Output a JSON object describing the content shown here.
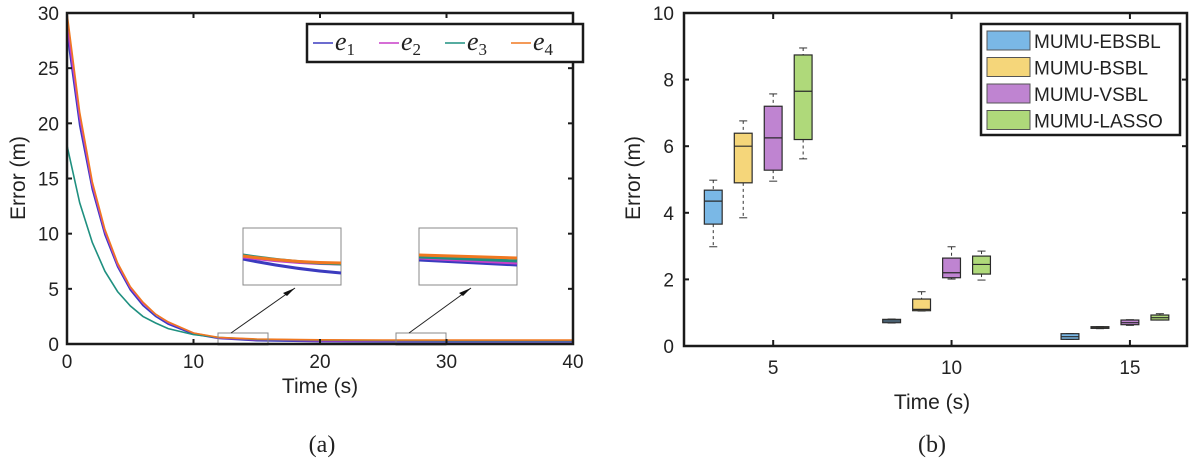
{
  "chart_data": [
    {
      "type": "line",
      "caption": "(a)",
      "xlabel": "Time (s)",
      "ylabel": "Error (m)",
      "xlim": [
        0,
        40
      ],
      "ylim": [
        0,
        30
      ],
      "xticks": [
        0,
        10,
        20,
        30,
        40
      ],
      "yticks": [
        0,
        5,
        10,
        15,
        20,
        25,
        30
      ],
      "grid": false,
      "legend_position": "top-right",
      "x": [
        0,
        1,
        2,
        3,
        4,
        5,
        6,
        7,
        8,
        10,
        12,
        15,
        20,
        25,
        30,
        35,
        40
      ],
      "series": [
        {
          "name": "e1",
          "color": "#3b3bbf",
          "values": [
            28.2,
            19.8,
            14.0,
            9.9,
            7.0,
            4.9,
            3.5,
            2.5,
            1.8,
            0.9,
            0.5,
            0.3,
            0.22,
            0.2,
            0.2,
            0.2,
            0.2
          ]
        },
        {
          "name": "e2",
          "color": "#c83fc8",
          "values": [
            29.0,
            20.5,
            14.4,
            10.2,
            7.2,
            5.1,
            3.7,
            2.7,
            1.95,
            1.0,
            0.55,
            0.38,
            0.3,
            0.28,
            0.27,
            0.27,
            0.27
          ]
        },
        {
          "name": "e3",
          "color": "#1f9080",
          "values": [
            18.0,
            12.8,
            9.2,
            6.6,
            4.75,
            3.45,
            2.5,
            1.9,
            1.4,
            0.85,
            0.6,
            0.42,
            0.35,
            0.32,
            0.3,
            0.3,
            0.3
          ]
        },
        {
          "name": "e4",
          "color": "#f07820",
          "values": [
            30.0,
            21.0,
            14.7,
            10.4,
            7.35,
            5.2,
            3.8,
            2.7,
            2.0,
            1.0,
            0.6,
            0.45,
            0.38,
            0.36,
            0.35,
            0.35,
            0.35
          ]
        }
      ],
      "zoom_insets": [
        {
          "x_range": [
            12,
            16
          ]
        },
        {
          "x_range": [
            26,
            30
          ]
        }
      ]
    },
    {
      "type": "box",
      "caption": "(b)",
      "xlabel": "Time (s)",
      "ylabel": "Error (m)",
      "xlim": [
        2.5,
        16.6
      ],
      "ylim": [
        0,
        10
      ],
      "xticks": [
        5,
        10,
        15
      ],
      "yticks": [
        0,
        2,
        4,
        6,
        8,
        10
      ],
      "grid": false,
      "legend_position": "top-right",
      "categories": [
        5,
        10,
        15
      ],
      "series": [
        {
          "name": "MUMU-EBSBL",
          "color": "#7ab8e6",
          "boxes": [
            {
              "min": 2.98,
              "q1": 3.66,
              "median": 4.35,
              "q3": 4.68,
              "max": 4.98
            },
            {
              "min": 0.69,
              "q1": 0.7,
              "median": 0.75,
              "q3": 0.8,
              "max": 0.81
            },
            {
              "min": 0.2,
              "q1": 0.2,
              "median": 0.28,
              "q3": 0.37,
              "max": 0.37
            }
          ]
        },
        {
          "name": "MUMU-BSBL",
          "color": "#f5d67a",
          "boxes": [
            {
              "min": 3.85,
              "q1": 4.9,
              "median": 6.0,
              "q3": 6.39,
              "max": 6.76
            },
            {
              "min": 1.05,
              "q1": 1.06,
              "median": 1.1,
              "q3": 1.41,
              "max": 1.63
            },
            {
              "min": 0.52,
              "q1": 0.53,
              "median": 0.55,
              "q3": 0.58,
              "max": 0.58
            }
          ]
        },
        {
          "name": "MUMU-VSBL",
          "color": "#bf84d1",
          "boxes": [
            {
              "min": 4.95,
              "q1": 5.28,
              "median": 6.25,
              "q3": 7.2,
              "max": 7.57
            },
            {
              "min": 2.01,
              "q1": 2.05,
              "median": 2.2,
              "q3": 2.64,
              "max": 2.98
            },
            {
              "min": 0.62,
              "q1": 0.64,
              "median": 0.7,
              "q3": 0.78,
              "max": 0.79
            }
          ]
        },
        {
          "name": "MUMU-LASSO",
          "color": "#afd97a",
          "boxes": [
            {
              "min": 5.62,
              "q1": 6.2,
              "median": 7.65,
              "q3": 8.74,
              "max": 8.95
            },
            {
              "min": 1.98,
              "q1": 2.16,
              "median": 2.45,
              "q3": 2.7,
              "max": 2.85
            },
            {
              "min": 0.78,
              "q1": 0.78,
              "median": 0.85,
              "q3": 0.93,
              "max": 0.97
            }
          ]
        }
      ]
    }
  ]
}
